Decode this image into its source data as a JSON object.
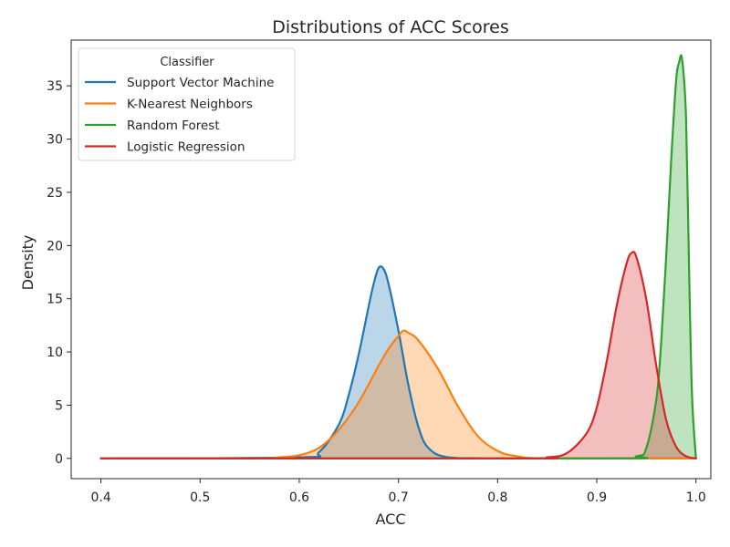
{
  "chart_data": {
    "type": "area",
    "subtype": "kde-density",
    "title": "Distributions of ACC Scores",
    "xlabel": "ACC",
    "ylabel": "Density",
    "xlim": [
      0.37,
      1.015
    ],
    "ylim": [
      -1.9,
      39.3
    ],
    "xticks": [
      0.4,
      0.5,
      0.6,
      0.7,
      0.8,
      0.9,
      1.0
    ],
    "xtick_labels": [
      "0.4",
      "0.5",
      "0.6",
      "0.7",
      "0.8",
      "0.9",
      "1.0"
    ],
    "yticks": [
      0,
      5,
      10,
      15,
      20,
      25,
      30,
      35
    ],
    "ytick_labels": [
      "0",
      "5",
      "10",
      "15",
      "20",
      "25",
      "30",
      "35"
    ],
    "grid": false,
    "fill_alpha": 0.3,
    "legend": {
      "title": "Classifier",
      "placement": "top-left"
    },
    "series": [
      {
        "name": "Support Vector Machine",
        "color": "#1f77b4",
        "x": [
          0.4,
          0.6,
          0.62,
          0.64,
          0.65,
          0.66,
          0.67,
          0.675,
          0.68,
          0.685,
          0.69,
          0.7,
          0.71,
          0.72,
          0.73,
          0.75,
          0.8,
          1.0
        ],
        "y": [
          0,
          0.1,
          0.6,
          3.2,
          6.0,
          9.8,
          14.3,
          16.4,
          17.9,
          17.8,
          16.4,
          12.0,
          6.9,
          3.0,
          1.0,
          0.1,
          0,
          0
        ]
      },
      {
        "name": "K-Nearest Neighbors",
        "color": "#ff7f0e",
        "x": [
          0.4,
          0.55,
          0.58,
          0.6,
          0.62,
          0.64,
          0.66,
          0.68,
          0.69,
          0.7,
          0.705,
          0.71,
          0.72,
          0.74,
          0.76,
          0.78,
          0.8,
          0.82,
          0.85,
          1.0
        ],
        "y": [
          0,
          0,
          0.1,
          0.3,
          1.0,
          2.7,
          5.3,
          8.7,
          10.3,
          11.5,
          12.0,
          11.8,
          11.1,
          8.4,
          4.9,
          2.1,
          0.7,
          0.2,
          0,
          0
        ]
      },
      {
        "name": "Random Forest",
        "color": "#2ca02c",
        "x": [
          0.4,
          0.9,
          0.94,
          0.95,
          0.96,
          0.965,
          0.97,
          0.975,
          0.98,
          0.983,
          0.986,
          0.99,
          0.993,
          0.996,
          1.0
        ],
        "y": [
          0,
          0,
          0.2,
          1.0,
          5.5,
          11.0,
          19.0,
          28.0,
          35.5,
          37.2,
          37.5,
          32.0,
          18.0,
          6.0,
          0
        ]
      },
      {
        "name": "Logistic Regression",
        "color": "#d62728",
        "x": [
          0.4,
          0.82,
          0.85,
          0.87,
          0.89,
          0.9,
          0.91,
          0.92,
          0.93,
          0.935,
          0.94,
          0.95,
          0.96,
          0.97,
          0.98,
          0.99,
          1.0
        ],
        "y": [
          0,
          0,
          0.1,
          0.5,
          2.4,
          4.8,
          9.1,
          14.3,
          18.3,
          19.3,
          18.9,
          14.9,
          8.7,
          3.6,
          1.1,
          0.2,
          0
        ]
      }
    ]
  }
}
